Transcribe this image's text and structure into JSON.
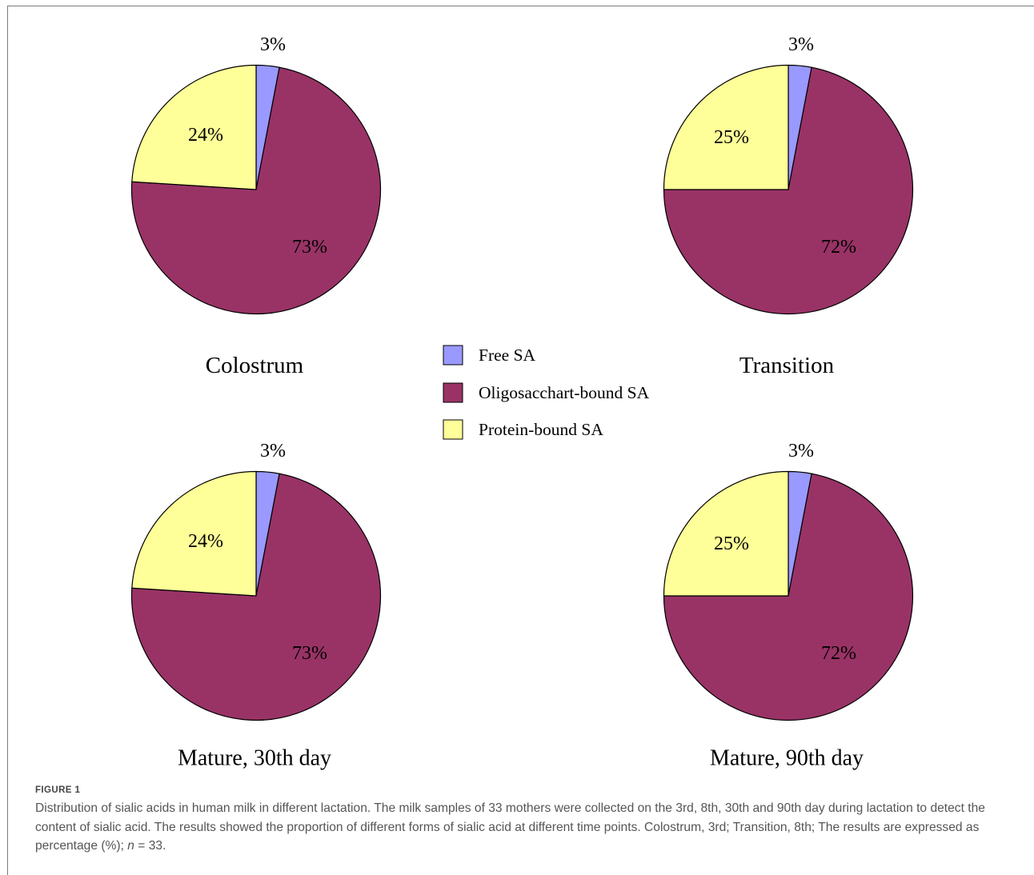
{
  "chart_data": {
    "type": "pie",
    "legend_position": "center",
    "legend": [
      {
        "label": "Free SA",
        "color": "#9999ff"
      },
      {
        "label": "Oligosacchart-bound SA",
        "color": "#993366"
      },
      {
        "label": "Protein-bound SA",
        "color": "#ffff99"
      }
    ],
    "charts": [
      {
        "title": "Colostrum",
        "categories": [
          "Free SA",
          "Oligosacchart-bound SA",
          "Protein-bound SA"
        ],
        "values": [
          3,
          73,
          24
        ],
        "labels": [
          "3%",
          "73%",
          "24%"
        ]
      },
      {
        "title": "Transition",
        "categories": [
          "Free SA",
          "Oligosacchart-bound SA",
          "Protein-bound SA"
        ],
        "values": [
          3,
          72,
          25
        ],
        "labels": [
          "3%",
          "72%",
          "25%"
        ]
      },
      {
        "title": "Mature, 30th day",
        "categories": [
          "Free SA",
          "Oligosacchart-bound SA",
          "Protein-bound SA"
        ],
        "values": [
          3,
          73,
          24
        ],
        "labels": [
          "3%",
          "73%",
          "24%"
        ]
      },
      {
        "title": "Mature, 90th day",
        "categories": [
          "Free SA",
          "Oligosacchart-bound SA",
          "Protein-bound SA"
        ],
        "values": [
          3,
          72,
          25
        ],
        "labels": [
          "3%",
          "72%",
          "25%"
        ]
      }
    ]
  },
  "caption": {
    "label": "FIGURE 1",
    "text": "Distribution of sialic acids in human milk in different lactation. The milk samples of 33 mothers were collected on the 3rd, 8th, 30th and 90th day during lactation to detect the content of sialic acid. The results showed the proportion of different forms of sialic acid at different time points. Colostrum, 3rd; Transition, 8th; The results are expressed as percentage (%); ",
    "n_symbol": "n",
    "n_value": " = 33."
  }
}
